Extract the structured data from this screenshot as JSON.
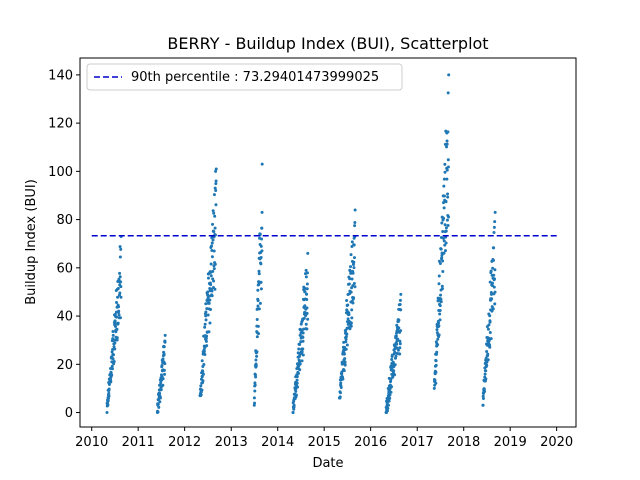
{
  "chart_data": {
    "type": "scatter",
    "title": "BERRY - Buildup Index (BUI), Scatterplot",
    "xlabel": "Date",
    "ylabel": "Buildup Index (BUI)",
    "xlim": [
      "2009-10-01",
      "2020-06-01"
    ],
    "ylim": [
      -6,
      147
    ],
    "x_ticks": [
      "2010",
      "2011",
      "2012",
      "2013",
      "2014",
      "2015",
      "2016",
      "2017",
      "2018",
      "2019",
      "2020"
    ],
    "y_ticks": [
      0,
      20,
      40,
      60,
      80,
      100,
      120,
      140
    ],
    "grid": false,
    "legend_position": "upper-left",
    "colors": {
      "points": "#1f77b4",
      "threshold_line": "#0000cc"
    },
    "threshold": {
      "label": "90th percentile : 73.29401473999025",
      "value": 73.29401473999025,
      "style": "dashed"
    },
    "series": [
      {
        "seasons": [
          {
            "year": 2010,
            "start": "2010-05-01",
            "end": "2010-08-20",
            "peak": 73,
            "min": 0
          },
          {
            "year": 2011,
            "start": "2011-06-01",
            "end": "2011-08-01",
            "peak": 32,
            "min": 0
          },
          {
            "year": 2012,
            "start": "2012-05-01",
            "end": "2012-09-05",
            "peak": 101,
            "min": 7
          },
          {
            "year": 2013,
            "start": "2013-07-01",
            "end": "2013-09-01",
            "peak": 103,
            "min": 3
          },
          {
            "year": 2014,
            "start": "2014-05-01",
            "end": "2014-08-25",
            "peak": 66,
            "min": 0
          },
          {
            "year": 2015,
            "start": "2015-05-01",
            "end": "2015-09-01",
            "peak": 84,
            "min": 6
          },
          {
            "year": 2016,
            "start": "2016-05-01",
            "end": "2016-08-25",
            "peak": 49,
            "min": 0
          },
          {
            "year": 2017,
            "start": "2017-05-15",
            "end": "2017-09-05",
            "peak": 140,
            "min": 10
          },
          {
            "year": 2018,
            "start": "2018-06-01",
            "end": "2018-09-05",
            "peak": 83,
            "min": 3
          }
        ]
      }
    ]
  }
}
